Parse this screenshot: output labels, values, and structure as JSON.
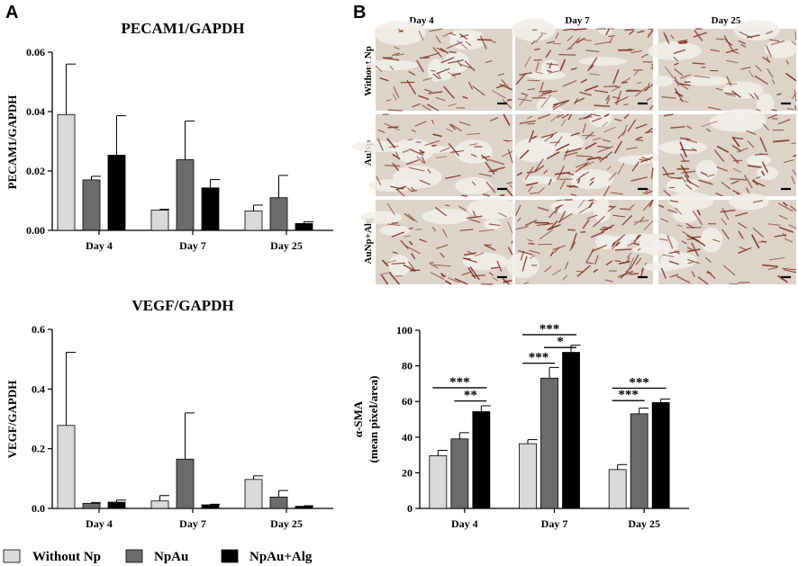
{
  "panel_letters": {
    "a": "A",
    "b": "B"
  },
  "colors": {
    "without_np": "#d9d9d9",
    "npau": "#6b6b6b",
    "npau_alg": "#000000",
    "tissue_bg": "#ddd3c9",
    "stain": "#7a2e1e"
  },
  "legend": [
    {
      "label": "Without Np",
      "color": "#d9d9d9"
    },
    {
      "label": "NpAu",
      "color": "#6b6b6b"
    },
    {
      "label": "NpAu+Alg",
      "color": "#000000"
    }
  ],
  "micrograph_grid": {
    "column_headers": [
      "Day 4",
      "Day 7",
      "Day 25"
    ],
    "row_labels": [
      "Without Np",
      "AuNp",
      "AuNp+Alg"
    ]
  },
  "chart_data": [
    {
      "type": "bar",
      "title": "PECAM1/GAPDH",
      "ylabel": "PECAM1/GAPDH",
      "xlabel": "",
      "categories": [
        "Day 4",
        "Day 7",
        "Day 25"
      ],
      "ylim": [
        0,
        0.06
      ],
      "yticks": [
        "0.00",
        "0.02",
        "0.04",
        "0.06"
      ],
      "series": [
        {
          "name": "Without Np",
          "values": [
            0.039,
            0.0068,
            0.0065
          ],
          "errors": [
            0.017,
            0.0003,
            0.002
          ]
        },
        {
          "name": "NpAu",
          "values": [
            0.017,
            0.0238,
            0.011
          ],
          "errors": [
            0.0012,
            0.013,
            0.0075
          ]
        },
        {
          "name": "NpAu+Alg",
          "values": [
            0.0253,
            0.0143,
            0.0023
          ],
          "errors": [
            0.0133,
            0.0028,
            0.0006
          ]
        }
      ]
    },
    {
      "type": "bar",
      "title": "VEGF/GAPDH",
      "ylabel": "VEGF/GAPDH",
      "xlabel": "",
      "categories": [
        "Day 4",
        "Day 7",
        "Day 25"
      ],
      "ylim": [
        0,
        0.6
      ],
      "yticks": [
        "0.0",
        "0.2",
        "0.4",
        "0.6"
      ],
      "series": [
        {
          "name": "Without Np",
          "values": [
            0.278,
            0.025,
            0.097
          ],
          "errors": [
            0.245,
            0.018,
            0.012
          ]
        },
        {
          "name": "NpAu",
          "values": [
            0.017,
            0.165,
            0.038
          ],
          "errors": [
            0.003,
            0.155,
            0.022
          ]
        },
        {
          "name": "NpAu+Alg",
          "values": [
            0.021,
            0.012,
            0.007
          ],
          "errors": [
            0.007,
            0.002,
            0.002
          ]
        }
      ]
    },
    {
      "type": "bar",
      "title": "",
      "ylabel_lines": [
        "α-SMA",
        "(mean pixel/area)"
      ],
      "xlabel": "",
      "categories": [
        "Day 4",
        "Day 7",
        "Day 25"
      ],
      "ylim": [
        0,
        100
      ],
      "yticks": [
        "0",
        "20",
        "40",
        "60",
        "80",
        "100"
      ],
      "series": [
        {
          "name": "Without Np",
          "values": [
            29.6,
            36.3,
            21.8
          ],
          "errors": [
            3.0,
            2.3,
            2.8
          ]
        },
        {
          "name": "NpAu",
          "values": [
            39.0,
            73.1,
            53.1
          ],
          "errors": [
            3.5,
            6.0,
            3.2
          ]
        },
        {
          "name": "NpAu+Alg",
          "values": [
            54.3,
            87.6,
            59.4
          ],
          "errors": [
            3.3,
            4.0,
            2.0
          ]
        }
      ],
      "significance": [
        {
          "group": 0,
          "from": 0,
          "to": 2,
          "label": "***",
          "y": 67.7
        },
        {
          "group": 0,
          "from": 1,
          "to": 2,
          "label": "**",
          "y": 60.3
        },
        {
          "group": 1,
          "from": 0,
          "to": 2,
          "label": "***",
          "y": 97.5
        },
        {
          "group": 1,
          "from": 1,
          "to": 2,
          "label": "*",
          "y": 90.3
        },
        {
          "group": 1,
          "from": 0,
          "to": 1,
          "label": "***",
          "y": 81.5
        },
        {
          "group": 2,
          "from": 0,
          "to": 2,
          "label": "***",
          "y": 67.5
        },
        {
          "group": 2,
          "from": 0,
          "to": 1,
          "label": "***",
          "y": 60.5
        }
      ]
    }
  ]
}
